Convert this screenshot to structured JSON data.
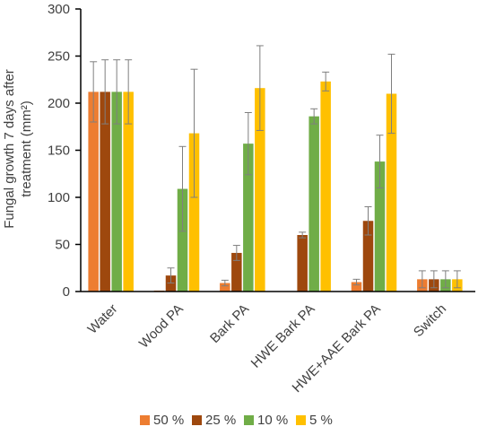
{
  "chart_data": {
    "type": "bar",
    "ylabel": "Fungal growth 7 days after treatment (mm²)",
    "ylabel_lines": [
      "Fungal growth 7 days after",
      "treatment (mm²)"
    ],
    "ylim": [
      0,
      300
    ],
    "yticks": [
      0,
      50,
      100,
      150,
      200,
      250,
      300
    ],
    "grid": false,
    "legend_position": "bottom",
    "categories": [
      "Water",
      "Wood PA",
      "Bark PA",
      "HWE Bark PA",
      "HWE+AAE Bark PA",
      "Switch"
    ],
    "series": [
      {
        "name": "50 %",
        "color": "#ED7D31",
        "values": [
          212,
          1,
          9,
          0,
          10,
          13
        ],
        "errors": [
          32,
          0,
          3,
          0,
          3,
          9
        ]
      },
      {
        "name": "25 %",
        "color": "#9E480E",
        "values": [
          212,
          17,
          41,
          60,
          75,
          13
        ],
        "errors": [
          34,
          8,
          8,
          3,
          15,
          9
        ]
      },
      {
        "name": "10 %",
        "color": "#70AD47",
        "values": [
          212,
          109,
          157,
          186,
          138,
          13
        ],
        "errors": [
          34,
          45,
          33,
          8,
          28,
          9
        ]
      },
      {
        "name": "5 %",
        "color": "#FFC000",
        "values": [
          212,
          168,
          216,
          223,
          210,
          13
        ],
        "errors": [
          34,
          68,
          45,
          10,
          42,
          9
        ]
      }
    ]
  }
}
